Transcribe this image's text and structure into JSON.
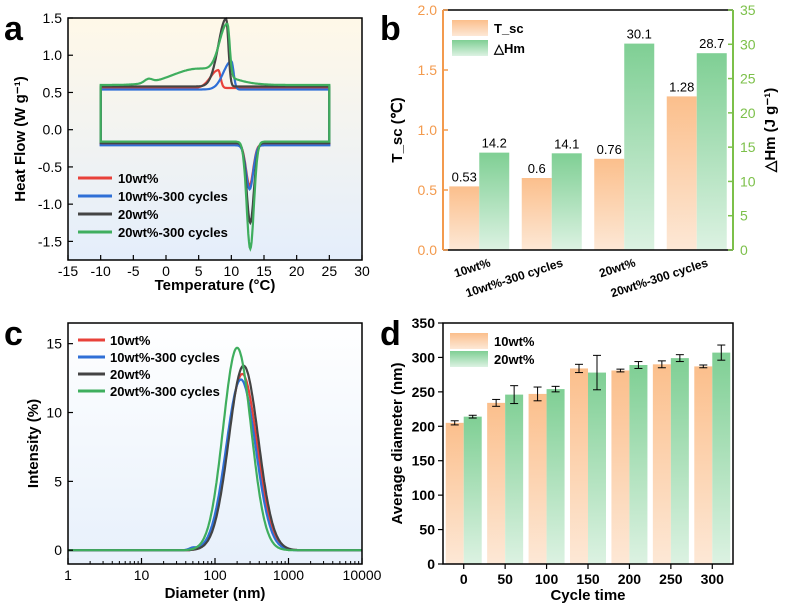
{
  "colors": {
    "red": "#e8413a",
    "blue": "#2f6fd6",
    "dark": "#444444",
    "green": "#3fae5e",
    "orange_top": "#fbbf8c",
    "orange_bottom": "#fde8d6",
    "green_top": "#7fcf94",
    "green_bottom": "#dcf2e2",
    "axis_orange": "#f39a4d",
    "axis_green": "#7cc04a"
  },
  "chart_data": [
    {
      "panel": "a",
      "type": "line",
      "xlabel": "Temperature (°C)",
      "ylabel": "Heat Flow (W g⁻¹)",
      "xlim": [
        -15,
        30
      ],
      "ylim": [
        -1.75,
        1.5
      ],
      "xticks": [
        -15,
        -10,
        -5,
        0,
        5,
        10,
        15,
        20,
        25,
        30
      ],
      "yticks": [
        -1.5,
        -1.0,
        -0.5,
        0.0,
        0.5,
        1.0,
        1.5
      ],
      "xtick_labels": [
        "-15",
        "-10",
        "-5",
        "0",
        "5",
        "10",
        "15",
        "20",
        "25",
        "30"
      ],
      "ytick_labels": [
        "-1.5",
        "-1.0",
        "-0.5",
        "0.0",
        "0.5",
        "1.0",
        "1.5"
      ],
      "legend": "bottom-left",
      "series": [
        {
          "name": "10wt%",
          "color_key": "red",
          "upper_base": 0.56,
          "lower_base": -0.2,
          "exo_peak_x": 8.0,
          "exo_peak_y": 0.8,
          "endo_peak_x": 12.8,
          "endo_peak_y": -0.75
        },
        {
          "name": "10wt%-300 cycles",
          "color_key": "blue",
          "upper_base": 0.54,
          "lower_base": -0.21,
          "exo_peak_x": 10.0,
          "exo_peak_y": 0.92,
          "endo_peak_x": 12.8,
          "endo_peak_y": -0.8
        },
        {
          "name": "20wt%",
          "color_key": "dark",
          "upper_base": 0.58,
          "lower_base": -0.18,
          "exo_peak_x": 9.2,
          "exo_peak_y": 1.49,
          "endo_peak_x": 12.9,
          "endo_peak_y": -1.25
        },
        {
          "name": "20wt%-300 cycles",
          "color_key": "green",
          "upper_base": 0.6,
          "lower_base": -0.16,
          "exo_peak_x": 9.4,
          "exo_peak_y": 1.3,
          "endo_peak_x": 12.9,
          "endo_peak_y": -1.6
        }
      ]
    },
    {
      "panel": "b",
      "type": "bar",
      "categories": [
        "10wt%",
        "10wt%-300 cycles",
        "20wt%",
        "20wt%-300 cycles"
      ],
      "ylabel": "T_sc (℃)",
      "y2label": "△Hm (J g⁻¹)",
      "ylim": [
        0,
        2.0
      ],
      "y2lim": [
        0,
        35
      ],
      "yticks": [
        0.0,
        0.5,
        1.0,
        1.5,
        2.0
      ],
      "y2ticks": [
        0,
        5,
        10,
        15,
        20,
        25,
        30,
        35
      ],
      "ytick_labels": [
        "0.0",
        "0.5",
        "1.0",
        "1.5",
        "2.0"
      ],
      "y2tick_labels": [
        "0",
        "5",
        "10",
        "15",
        "20",
        "25",
        "30",
        "35"
      ],
      "legend": "top-left",
      "series": [
        {
          "name": "T_sc",
          "axis": "left",
          "values": [
            0.53,
            0.6,
            0.76,
            1.28
          ],
          "labels": [
            "0.53",
            "0.6",
            "0.76",
            "1.28"
          ]
        },
        {
          "name": "△Hm",
          "axis": "right",
          "values": [
            14.2,
            14.1,
            30.1,
            28.7
          ],
          "labels": [
            "14.2",
            "14.1",
            "30.1",
            "28.7"
          ]
        }
      ]
    },
    {
      "panel": "c",
      "type": "line",
      "xscale": "log",
      "xlabel": "Diameter (nm)",
      "ylabel": "Intensity (%)",
      "xlim": [
        1,
        10000
      ],
      "ylim": [
        -1,
        16.5
      ],
      "xticks": [
        1,
        10,
        100,
        1000,
        10000
      ],
      "xtick_labels": [
        "1",
        "10",
        "100",
        "1000",
        "10000"
      ],
      "yticks": [
        0,
        5,
        10,
        15
      ],
      "ytick_labels": [
        "0",
        "5",
        "10",
        "15"
      ],
      "legend": "top-left",
      "series": [
        {
          "name": "10wt%",
          "color_key": "red",
          "peak_x": 235,
          "peak_y": 12.8,
          "width": 0.2
        },
        {
          "name": "10wt%-300 cycles",
          "color_key": "blue",
          "peak_x": 225,
          "peak_y": 12.4,
          "width": 0.2
        },
        {
          "name": "20wt%",
          "color_key": "dark",
          "peak_x": 245,
          "peak_y": 13.4,
          "width": 0.2
        },
        {
          "name": "20wt%-300 cycles",
          "color_key": "green",
          "peak_x": 200,
          "peak_y": 14.7,
          "width": 0.19
        }
      ]
    },
    {
      "panel": "d",
      "type": "bar",
      "categories": [
        "0",
        "50",
        "100",
        "150",
        "200",
        "250",
        "300"
      ],
      "xlabel": "Cycle time",
      "ylabel": "Average diameter (nm)",
      "ylim": [
        0,
        350
      ],
      "yticks": [
        0,
        50,
        100,
        150,
        200,
        250,
        300,
        350
      ],
      "ytick_labels": [
        "0",
        "50",
        "100",
        "150",
        "200",
        "250",
        "300",
        "350"
      ],
      "legend": "top-left",
      "series": [
        {
          "name": "10wt%",
          "values": [
            205,
            234,
            247,
            284,
            281,
            290,
            287
          ],
          "errors": [
            3,
            5,
            10,
            6,
            2,
            5,
            2
          ]
        },
        {
          "name": "20wt%",
          "values": [
            214,
            246,
            254,
            278,
            289,
            299,
            307
          ],
          "errors": [
            2,
            13,
            4,
            25,
            5,
            5,
            11
          ]
        }
      ]
    }
  ],
  "panel_labels": [
    "a",
    "b",
    "c",
    "d"
  ]
}
